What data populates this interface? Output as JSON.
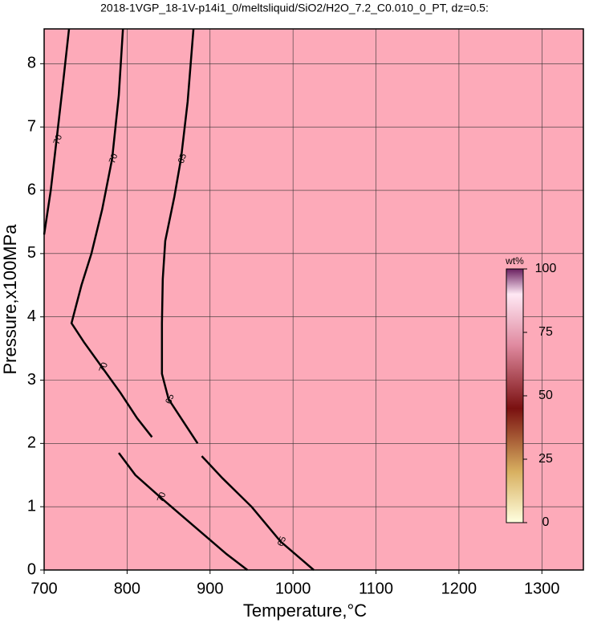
{
  "chart_data": {
    "type": "contour",
    "title": "2018-1VGP_18-1V-p14i1_0/meltsliquid/SiO2/H2O_7.2_C0.010_0_PT, dz=0.5:",
    "xlabel": "Temperature,°C",
    "ylabel": "Pressure,x100MPa",
    "xlim": [
      700,
      1350
    ],
    "xticks": [
      700,
      800,
      900,
      1000,
      1100,
      1200,
      1300
    ],
    "ylim": [
      0,
      8.55
    ],
    "yticks": [
      0,
      1,
      2,
      3,
      4,
      5,
      6,
      7,
      8
    ],
    "grid": true,
    "fill_color": "#fdaab9",
    "contours": [
      {
        "level": 70,
        "x": [
          730,
          722,
          715,
          708,
          700
        ],
        "y": [
          8.55,
          7.6,
          6.8,
          6.0,
          5.3
        ]
      },
      {
        "level": 70,
        "x": [
          795,
          790,
          782,
          770,
          757,
          745,
          733,
          748,
          770,
          792,
          812,
          830,
          null,
          790,
          810,
          840,
          880,
          920,
          945
        ],
        "y": [
          8.55,
          7.5,
          6.5,
          5.7,
          5.0,
          4.5,
          3.9,
          3.6,
          3.2,
          2.8,
          2.4,
          2.1,
          null,
          1.85,
          1.5,
          1.15,
          0.7,
          0.25,
          0
        ]
      },
      {
        "level": 65,
        "x": [
          880,
          873,
          865,
          857,
          846,
          843,
          842,
          842,
          850,
          870,
          885,
          null,
          890,
          915,
          950,
          985,
          1025
        ],
        "y": [
          8.55,
          7.4,
          6.5,
          5.9,
          5.2,
          4.6,
          3.9,
          3.1,
          2.7,
          2.3,
          2.0,
          null,
          1.8,
          1.45,
          1.0,
          0.45,
          0
        ]
      }
    ],
    "colorbar": {
      "label": "wt%",
      "lim": [
        0,
        100
      ],
      "ticks": [
        0,
        25,
        50,
        75,
        100
      ]
    }
  }
}
